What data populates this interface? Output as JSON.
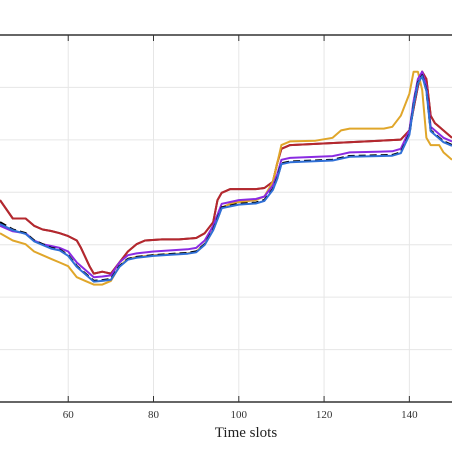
{
  "chart_data": {
    "type": "line",
    "title": "",
    "xlabel": "Time slots",
    "ylabel": "",
    "xlim": [
      44,
      150
    ],
    "ylim": [
      0,
      1
    ],
    "xticks": [
      60,
      80,
      100,
      120,
      140
    ],
    "grid": true,
    "legend": "none",
    "series": [
      {
        "color": "#7a1e2c",
        "points": [
          [
            44,
            0.55
          ],
          [
            47,
            0.5
          ],
          [
            50,
            0.5
          ],
          [
            52,
            0.48
          ],
          [
            54,
            0.47
          ],
          [
            56,
            0.466
          ],
          [
            58,
            0.46
          ],
          [
            60,
            0.452
          ],
          [
            62,
            0.44
          ],
          [
            63,
            0.42
          ],
          [
            65,
            0.37
          ],
          [
            66,
            0.35
          ],
          [
            68,
            0.355
          ],
          [
            70,
            0.35
          ],
          [
            72,
            0.38
          ],
          [
            74,
            0.41
          ],
          [
            76,
            0.43
          ],
          [
            78,
            0.44
          ],
          [
            82,
            0.443
          ],
          [
            86,
            0.443
          ],
          [
            90,
            0.447
          ],
          [
            92,
            0.46
          ],
          [
            94,
            0.49
          ],
          [
            95,
            0.55
          ],
          [
            96,
            0.57
          ],
          [
            98,
            0.58
          ],
          [
            100,
            0.58
          ],
          [
            102,
            0.58
          ],
          [
            104,
            0.58
          ],
          [
            106,
            0.583
          ],
          [
            108,
            0.6
          ],
          [
            109,
            0.65
          ],
          [
            110,
            0.69
          ],
          [
            112,
            0.7
          ],
          [
            130,
            0.71
          ],
          [
            138,
            0.715
          ],
          [
            140,
            0.74
          ],
          [
            141,
            0.8
          ],
          [
            142,
            0.86
          ],
          [
            143,
            0.9
          ],
          [
            144,
            0.88
          ],
          [
            145,
            0.78
          ],
          [
            146,
            0.76
          ],
          [
            147,
            0.75
          ],
          [
            150,
            0.72
          ]
        ]
      },
      {
        "color": "#b5282e",
        "points": [
          [
            44,
            0.55
          ],
          [
            47,
            0.5
          ],
          [
            50,
            0.5
          ],
          [
            52,
            0.48
          ],
          [
            54,
            0.47
          ],
          [
            56,
            0.466
          ],
          [
            58,
            0.46
          ],
          [
            60,
            0.452
          ],
          [
            62,
            0.44
          ],
          [
            63,
            0.42
          ],
          [
            65,
            0.37
          ],
          [
            66,
            0.35
          ],
          [
            68,
            0.355
          ],
          [
            70,
            0.35
          ],
          [
            72,
            0.38
          ],
          [
            74,
            0.41
          ],
          [
            76,
            0.43
          ],
          [
            78,
            0.44
          ],
          [
            82,
            0.443
          ],
          [
            86,
            0.443
          ],
          [
            90,
            0.447
          ],
          [
            92,
            0.46
          ],
          [
            94,
            0.49
          ],
          [
            95,
            0.55
          ],
          [
            96,
            0.57
          ],
          [
            98,
            0.58
          ],
          [
            100,
            0.58
          ],
          [
            102,
            0.58
          ],
          [
            104,
            0.58
          ],
          [
            106,
            0.583
          ],
          [
            108,
            0.6
          ],
          [
            109,
            0.65
          ],
          [
            110,
            0.69
          ],
          [
            112,
            0.7
          ],
          [
            130,
            0.71
          ],
          [
            138,
            0.715
          ],
          [
            140,
            0.74
          ],
          [
            141,
            0.8
          ],
          [
            142,
            0.86
          ],
          [
            143,
            0.9
          ],
          [
            144,
            0.88
          ],
          [
            145,
            0.78
          ],
          [
            146,
            0.76
          ],
          [
            147,
            0.75
          ],
          [
            150,
            0.72
          ]
        ]
      },
      {
        "color": "#e0a62a",
        "points": [
          [
            44,
            0.46
          ],
          [
            47,
            0.44
          ],
          [
            50,
            0.43
          ],
          [
            52,
            0.41
          ],
          [
            54,
            0.4
          ],
          [
            56,
            0.39
          ],
          [
            58,
            0.38
          ],
          [
            60,
            0.37
          ],
          [
            62,
            0.34
          ],
          [
            64,
            0.33
          ],
          [
            66,
            0.32
          ],
          [
            68,
            0.32
          ],
          [
            70,
            0.33
          ],
          [
            72,
            0.37
          ],
          [
            74,
            0.39
          ],
          [
            76,
            0.395
          ],
          [
            80,
            0.4
          ],
          [
            84,
            0.403
          ],
          [
            88,
            0.405
          ],
          [
            90,
            0.41
          ],
          [
            92,
            0.43
          ],
          [
            94,
            0.47
          ],
          [
            95,
            0.5
          ],
          [
            96,
            0.53
          ],
          [
            98,
            0.54
          ],
          [
            100,
            0.545
          ],
          [
            104,
            0.55
          ],
          [
            106,
            0.56
          ],
          [
            108,
            0.6
          ],
          [
            109,
            0.65
          ],
          [
            110,
            0.7
          ],
          [
            112,
            0.71
          ],
          [
            118,
            0.712
          ],
          [
            122,
            0.72
          ],
          [
            124,
            0.74
          ],
          [
            126,
            0.745
          ],
          [
            134,
            0.745
          ],
          [
            136,
            0.75
          ],
          [
            138,
            0.78
          ],
          [
            140,
            0.84
          ],
          [
            141,
            0.9
          ],
          [
            142,
            0.9
          ],
          [
            143,
            0.85
          ],
          [
            144,
            0.72
          ],
          [
            145,
            0.7
          ],
          [
            147,
            0.7
          ],
          [
            148,
            0.68
          ],
          [
            150,
            0.66
          ]
        ]
      },
      {
        "color": "#8a2be2",
        "points": [
          [
            44,
            0.48
          ],
          [
            47,
            0.465
          ],
          [
            50,
            0.46
          ],
          [
            52,
            0.44
          ],
          [
            54,
            0.43
          ],
          [
            56,
            0.425
          ],
          [
            58,
            0.42
          ],
          [
            60,
            0.41
          ],
          [
            62,
            0.38
          ],
          [
            64,
            0.36
          ],
          [
            66,
            0.34
          ],
          [
            68,
            0.342
          ],
          [
            70,
            0.345
          ],
          [
            72,
            0.38
          ],
          [
            74,
            0.4
          ],
          [
            76,
            0.405
          ],
          [
            80,
            0.41
          ],
          [
            84,
            0.413
          ],
          [
            88,
            0.416
          ],
          [
            90,
            0.42
          ],
          [
            92,
            0.44
          ],
          [
            94,
            0.48
          ],
          [
            95,
            0.51
          ],
          [
            96,
            0.54
          ],
          [
            98,
            0.545
          ],
          [
            100,
            0.55
          ],
          [
            104,
            0.553
          ],
          [
            106,
            0.56
          ],
          [
            108,
            0.59
          ],
          [
            109,
            0.62
          ],
          [
            110,
            0.66
          ],
          [
            112,
            0.665
          ],
          [
            122,
            0.67
          ],
          [
            124,
            0.675
          ],
          [
            126,
            0.68
          ],
          [
            136,
            0.683
          ],
          [
            138,
            0.69
          ],
          [
            140,
            0.74
          ],
          [
            141,
            0.82
          ],
          [
            142,
            0.88
          ],
          [
            143,
            0.9
          ],
          [
            144,
            0.86
          ],
          [
            145,
            0.75
          ],
          [
            147,
            0.73
          ],
          [
            148,
            0.72
          ],
          [
            150,
            0.71
          ]
        ]
      },
      {
        "color": "#000000",
        "dashed": true,
        "points": [
          [
            44,
            0.49
          ],
          [
            47,
            0.47
          ],
          [
            50,
            0.46
          ],
          [
            52,
            0.44
          ],
          [
            54,
            0.43
          ],
          [
            56,
            0.42
          ],
          [
            58,
            0.415
          ],
          [
            60,
            0.4
          ],
          [
            62,
            0.37
          ],
          [
            64,
            0.35
          ],
          [
            66,
            0.33
          ],
          [
            68,
            0.332
          ],
          [
            70,
            0.335
          ],
          [
            72,
            0.37
          ],
          [
            74,
            0.39
          ],
          [
            76,
            0.395
          ],
          [
            80,
            0.4
          ],
          [
            84,
            0.403
          ],
          [
            88,
            0.406
          ],
          [
            90,
            0.41
          ],
          [
            92,
            0.43
          ],
          [
            94,
            0.47
          ],
          [
            95,
            0.5
          ],
          [
            96,
            0.53
          ],
          [
            98,
            0.535
          ],
          [
            100,
            0.54
          ],
          [
            104,
            0.543
          ],
          [
            106,
            0.55
          ],
          [
            108,
            0.58
          ],
          [
            109,
            0.61
          ],
          [
            110,
            0.65
          ],
          [
            112,
            0.655
          ],
          [
            122,
            0.66
          ],
          [
            124,
            0.665
          ],
          [
            126,
            0.67
          ],
          [
            136,
            0.673
          ],
          [
            138,
            0.68
          ],
          [
            140,
            0.73
          ],
          [
            141,
            0.81
          ],
          [
            142,
            0.87
          ],
          [
            143,
            0.89
          ],
          [
            144,
            0.85
          ],
          [
            145,
            0.74
          ],
          [
            147,
            0.72
          ],
          [
            148,
            0.71
          ],
          [
            150,
            0.7
          ]
        ]
      },
      {
        "color": "#2f6fd6",
        "points": [
          [
            44,
            0.485
          ],
          [
            47,
            0.468
          ],
          [
            50,
            0.458
          ],
          [
            52,
            0.438
          ],
          [
            54,
            0.428
          ],
          [
            56,
            0.418
          ],
          [
            58,
            0.413
          ],
          [
            60,
            0.398
          ],
          [
            62,
            0.368
          ],
          [
            64,
            0.348
          ],
          [
            66,
            0.328
          ],
          [
            68,
            0.33
          ],
          [
            70,
            0.333
          ],
          [
            72,
            0.368
          ],
          [
            74,
            0.388
          ],
          [
            76,
            0.393
          ],
          [
            80,
            0.398
          ],
          [
            84,
            0.401
          ],
          [
            88,
            0.404
          ],
          [
            90,
            0.408
          ],
          [
            92,
            0.428
          ],
          [
            94,
            0.468
          ],
          [
            95,
            0.498
          ],
          [
            96,
            0.528
          ],
          [
            98,
            0.533
          ],
          [
            100,
            0.538
          ],
          [
            104,
            0.541
          ],
          [
            106,
            0.548
          ],
          [
            108,
            0.578
          ],
          [
            109,
            0.608
          ],
          [
            110,
            0.648
          ],
          [
            112,
            0.653
          ],
          [
            122,
            0.658
          ],
          [
            124,
            0.663
          ],
          [
            126,
            0.668
          ],
          [
            136,
            0.671
          ],
          [
            138,
            0.678
          ],
          [
            140,
            0.728
          ],
          [
            141,
            0.808
          ],
          [
            142,
            0.868
          ],
          [
            143,
            0.888
          ],
          [
            144,
            0.848
          ],
          [
            145,
            0.738
          ],
          [
            147,
            0.718
          ],
          [
            148,
            0.708
          ],
          [
            150,
            0.698
          ]
        ]
      }
    ]
  }
}
